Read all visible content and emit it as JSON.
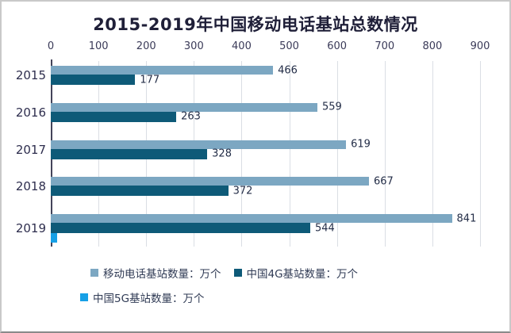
{
  "chart_data": {
    "type": "bar",
    "orientation": "horizontal",
    "title": "2015-2019年中国移动电话基站总数情况",
    "categories": [
      "2015",
      "2016",
      "2017",
      "2018",
      "2019"
    ],
    "series": [
      {
        "name": "移动电话基站数量：万个",
        "color": "#7ca7c2",
        "values": [
          466,
          559,
          619,
          667,
          841
        ],
        "show_value_labels": true
      },
      {
        "name": "中国4G基站数量：万个",
        "color": "#0e5a78",
        "values": [
          177,
          263,
          328,
          372,
          544
        ],
        "show_value_labels": true
      },
      {
        "name": "中国5G基站数量：万个",
        "color": "#16a0e6",
        "values": [
          null,
          null,
          null,
          null,
          13
        ],
        "show_value_labels": false
      }
    ],
    "x_ticks": [
      0,
      100,
      200,
      300,
      400,
      500,
      600,
      700,
      800,
      900
    ],
    "xlim": [
      0,
      900
    ],
    "grid": "vertical",
    "legend_position": "bottom",
    "legend_rows": [
      [
        0,
        1
      ],
      [
        2
      ]
    ]
  },
  "colors": {
    "title_text": "#1f1f38",
    "axis_text": "#3a3a58",
    "value_text": "#232d47",
    "gridline": "#dadee4",
    "axis_line": "#44445a",
    "background": "#ffffff"
  }
}
